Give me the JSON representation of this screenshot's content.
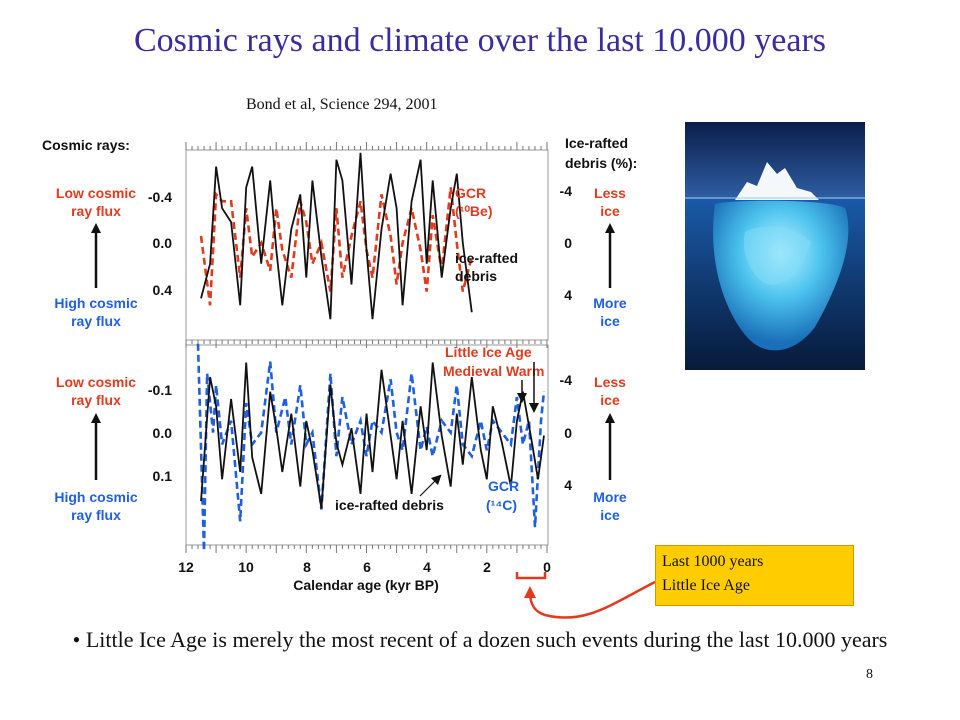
{
  "slide": {
    "title": "Cosmic rays and climate over the last 10.000 years",
    "citation": "Bond et al, Science 294, 2001",
    "callout": [
      "Last 1000 years",
      "Little Ice Age"
    ],
    "bullet": "Little Ice Age is merely the most recent of a dozen such events during the last 10.000 years",
    "bullet_marker": "•",
    "page_number": "8"
  },
  "colors": {
    "title": "#3a2ca0",
    "red_series": "#e23a1e",
    "blue_series": "#1f5fe0",
    "black_series": "#111111",
    "callout_bg": "#ffcc00",
    "arrow": "#e23a1e"
  },
  "chart_data": [
    {
      "type": "line",
      "panel": "top",
      "left_axis_title": "Cosmic rays:",
      "right_axis_title": [
        "Ice-rafted",
        "debris (%):"
      ],
      "left_top_caption": [
        "Low cosmic",
        "ray flux"
      ],
      "left_bottom_caption": [
        "High cosmic",
        "ray flux"
      ],
      "right_top_caption": [
        "Less",
        "ice"
      ],
      "right_bottom_caption": [
        "More",
        "ice"
      ],
      "left_ticks": [
        "-0.4",
        "0.0",
        "0.4"
      ],
      "right_ticks": [
        "-4",
        "0",
        "4"
      ],
      "left_ylim": [
        0.75,
        -0.62
      ],
      "right_ylim": [
        7.5,
        -6.2
      ],
      "series": [
        {
          "label": [
            "GCR",
            "(¹⁰Be)"
          ],
          "style": "dashed",
          "color": "#e23a1e",
          "x": [
            11.5,
            11.2,
            11.0,
            10.8,
            10.5,
            10.2,
            10.0,
            9.8,
            9.5,
            9.2,
            9.0,
            8.8,
            8.5,
            8.2,
            8.0,
            7.8,
            7.5,
            7.2,
            7.0,
            6.8,
            6.5,
            6.2,
            6.0,
            5.8,
            5.5,
            5.2,
            5.0,
            4.8,
            4.5,
            4.2,
            4.0,
            3.8,
            3.5,
            3.2,
            3.0,
            2.8,
            2.5
          ],
          "y": [
            0.0,
            0.5,
            -0.3,
            -0.25,
            -0.25,
            0.3,
            -0.2,
            0.15,
            0.05,
            0.25,
            -0.2,
            0.1,
            0.3,
            -0.25,
            -0.1,
            0.2,
            0.05,
            0.4,
            -0.2,
            0.3,
            0.0,
            -0.25,
            0.1,
            0.3,
            -0.3,
            0.0,
            0.35,
            0.05,
            -0.2,
            0.1,
            0.4,
            -0.15,
            0.25,
            -0.35,
            0.05,
            0.4,
            0.15
          ]
        },
        {
          "label": [
            "ice-rafted",
            "debris"
          ],
          "style": "solid",
          "color": "#111111",
          "x": [
            11.5,
            11.2,
            11.0,
            10.8,
            10.5,
            10.2,
            10.0,
            9.8,
            9.5,
            9.2,
            9.0,
            8.8,
            8.5,
            8.2,
            8.0,
            7.8,
            7.5,
            7.2,
            7.0,
            6.8,
            6.5,
            6.2,
            6.0,
            5.8,
            5.5,
            5.2,
            5.0,
            4.8,
            4.5,
            4.2,
            4.0,
            3.8,
            3.5,
            3.2,
            3.0,
            2.8,
            2.5
          ],
          "y": [
            4.5,
            2.0,
            -5.0,
            -2.0,
            -1.0,
            5.0,
            -3.5,
            -5.0,
            2.0,
            -4.0,
            1.0,
            5.0,
            -0.5,
            -3.0,
            3.0,
            -4.0,
            1.5,
            6.0,
            -5.5,
            -4.0,
            3.5,
            -6.0,
            1.0,
            6.0,
            -0.5,
            -4.5,
            -2.0,
            5.0,
            -2.5,
            -5.5,
            2.0,
            -4.0,
            3.0,
            -2.0,
            -4.5,
            0.5,
            5.5
          ]
        }
      ]
    },
    {
      "type": "line",
      "panel": "bottom",
      "xlabel": "Calendar age (kyr BP)",
      "x_ticks": [
        "12",
        "10",
        "8",
        "6",
        "4",
        "2",
        "0"
      ],
      "xlim": [
        12,
        0
      ],
      "left_top_caption": [
        "Low cosmic",
        "ray flux"
      ],
      "left_bottom_caption": [
        "High cosmic",
        "ray flux"
      ],
      "right_top_caption": [
        "Less",
        "ice"
      ],
      "right_bottom_caption": [
        "More",
        "ice"
      ],
      "left_ticks": [
        "-0.1",
        "0.0",
        "0.1"
      ],
      "right_ticks": [
        "-4",
        "0",
        "4"
      ],
      "left_ylim": [
        0.19,
        -0.148
      ],
      "right_ylim": [
        7.5,
        -6.2
      ],
      "annotations": [
        "Little Ice Age",
        "Medieval Warm"
      ],
      "series": [
        {
          "label": [
            "GCR",
            "(¹⁴C)"
          ],
          "style": "dashed",
          "color": "#1f5fe0",
          "x": [
            11.6,
            11.4,
            11.3,
            11.1,
            11.0,
            10.8,
            10.5,
            10.2,
            10.0,
            9.8,
            9.5,
            9.2,
            9.0,
            8.7,
            8.5,
            8.2,
            8.0,
            7.8,
            7.5,
            7.2,
            7.0,
            6.8,
            6.5,
            6.2,
            6.0,
            5.8,
            5.5,
            5.2,
            5.0,
            4.8,
            4.5,
            4.2,
            4.0,
            3.8,
            3.5,
            3.2,
            3.0,
            2.8,
            2.5,
            2.2,
            2.0,
            1.8,
            1.5,
            1.2,
            1.0,
            0.8,
            0.6,
            0.4,
            0.2,
            0.1
          ],
          "y": [
            -0.15,
            0.2,
            -0.1,
            0.0,
            -0.08,
            0.02,
            -0.02,
            0.15,
            -0.05,
            0.02,
            0.0,
            -0.12,
            0.0,
            -0.06,
            0.02,
            -0.08,
            0.02,
            0.0,
            0.13,
            -0.1,
            0.04,
            -0.06,
            0.02,
            -0.02,
            0.04,
            -0.02,
            0.0,
            -0.09,
            0.0,
            0.03,
            -0.1,
            0.03,
            -0.01,
            0.04,
            -0.02,
            0.0,
            -0.08,
            0.02,
            0.04,
            -0.02,
            0.03,
            -0.02,
            0.0,
            0.02,
            -0.06,
            0.02,
            -0.02,
            0.16,
            -0.02,
            -0.07
          ]
        },
        {
          "label": "ice-rafted debris",
          "style": "solid",
          "color": "#111111",
          "x": [
            11.5,
            11.2,
            11.0,
            10.8,
            10.5,
            10.2,
            10.0,
            9.8,
            9.5,
            9.2,
            9.0,
            8.8,
            8.5,
            8.2,
            8.0,
            7.8,
            7.5,
            7.2,
            7.0,
            6.8,
            6.5,
            6.2,
            6.0,
            5.8,
            5.5,
            5.2,
            5.0,
            4.8,
            4.5,
            4.2,
            4.0,
            3.8,
            3.5,
            3.2,
            3.0,
            2.8,
            2.5,
            2.2,
            2.0,
            1.8,
            1.5,
            1.2,
            1.0,
            0.8,
            0.5,
            0.3,
            0.1
          ],
          "y": [
            4.5,
            -4.0,
            -2.0,
            3.0,
            -2.5,
            2.5,
            -5.0,
            1.5,
            4.0,
            -3.0,
            -0.5,
            2.5,
            -1.5,
            3.5,
            -1.0,
            1.0,
            5.0,
            -3.5,
            0.5,
            2.0,
            -0.5,
            4.0,
            -1.5,
            2.5,
            -4.5,
            0.0,
            3.0,
            -1.0,
            4.0,
            -2.0,
            1.0,
            -5.0,
            0.0,
            3.5,
            -1.5,
            2.0,
            -4.0,
            1.0,
            3.0,
            -2.0,
            0.5,
            3.5,
            -1.0,
            -3.0,
            0.5,
            3.0,
            0.0
          ]
        }
      ]
    }
  ]
}
